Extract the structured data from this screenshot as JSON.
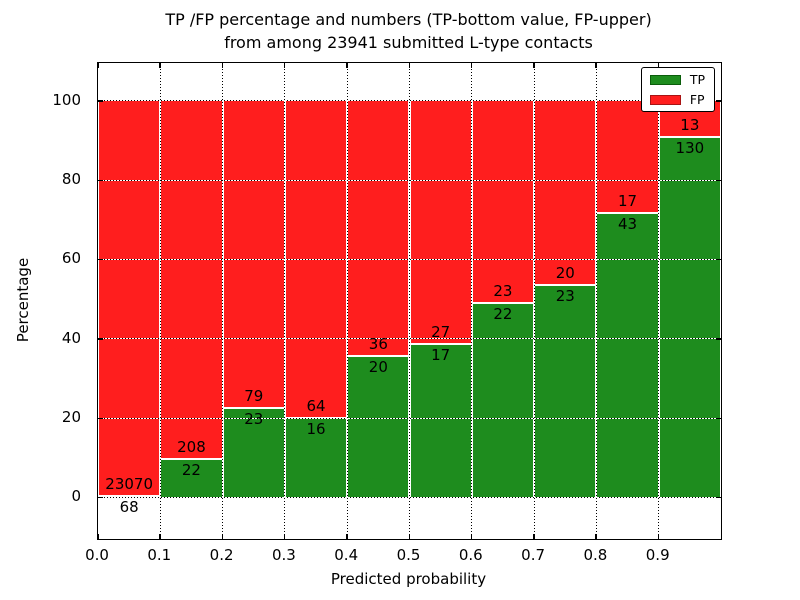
{
  "title_line1": "TP /FP percentage and numbers (TP-bottom value, FP-upper)",
  "title_line2": "from among 23941 submitted L-type contacts",
  "chart_data": {
    "type": "bar",
    "stacked": true,
    "normalized_to_percent": true,
    "title_line1": "TP /FP percentage and numbers (TP-bottom value, FP-upper)",
    "title_line2": "from among 23941 submitted L-type contacts",
    "xlabel": "Predicted probability",
    "ylabel": "Percentage",
    "bin_starts": [
      0.0,
      0.1,
      0.2,
      0.3,
      0.4,
      0.5,
      0.6,
      0.7,
      0.8,
      0.9
    ],
    "bin_width": 0.1,
    "series": [
      {
        "name": "TP",
        "color": "#1e8c1e",
        "counts": [
          68,
          22,
          23,
          16,
          20,
          17,
          22,
          23,
          43,
          130
        ]
      },
      {
        "name": "FP",
        "color": "#ff1e1e",
        "counts": [
          23070,
          208,
          79,
          64,
          36,
          27,
          23,
          20,
          17,
          13
        ]
      }
    ],
    "tp_percent": [
      0.29,
      9.57,
      22.55,
      20.0,
      35.71,
      38.64,
      48.89,
      53.49,
      71.67,
      90.91
    ],
    "x_tick_labels": [
      "0.0",
      "0.1",
      "0.2",
      "0.3",
      "0.4",
      "0.5",
      "0.6",
      "0.7",
      "0.8",
      "0.9"
    ],
    "y_tick_labels": [
      "0",
      "20",
      "40",
      "60",
      "80",
      "100"
    ],
    "y_tick_values": [
      0,
      20,
      40,
      60,
      80,
      100
    ],
    "xlim": [
      0.0,
      1.0
    ],
    "ylim": [
      -10.5,
      109.5
    ],
    "grid": "dotted",
    "legend": {
      "position": "upper right",
      "entries": [
        {
          "label": "TP",
          "color": "#1e8c1e",
          "edge": "#0a5d0a"
        },
        {
          "label": "FP",
          "color": "#ff1e1e",
          "edge": "#a81414"
        }
      ]
    }
  }
}
